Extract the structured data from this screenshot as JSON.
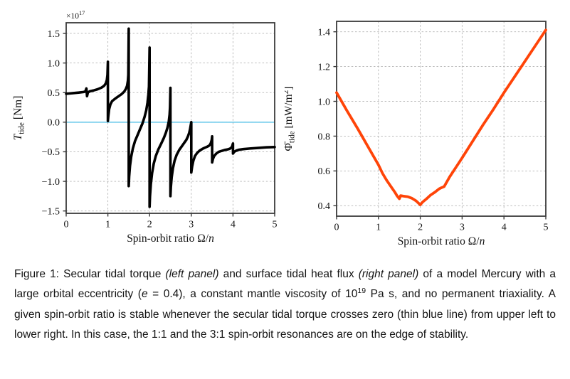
{
  "chart_data": [
    {
      "id": "secular-tidal-torque",
      "type": "line",
      "xlabel_parts": [
        {
          "t": "Spin-orbit ratio "
        },
        {
          "t": "Ω"
        },
        {
          "t": "/"
        },
        {
          "t": "n",
          "italic": true
        }
      ],
      "ylabel_parts": [
        {
          "t": "T",
          "italic": true
        },
        {
          "t": "tide",
          "pos": "sub"
        },
        {
          "t": " [Nm]"
        }
      ],
      "offset_label_parts": [
        {
          "t": "×10"
        },
        {
          "t": "17",
          "pos": "sup"
        }
      ],
      "xlim": [
        0,
        5
      ],
      "ylim": [
        -1.54,
        1.68
      ],
      "xticks": [
        0,
        1,
        2,
        3,
        4,
        5
      ],
      "xtick_labels": [
        "0",
        "1",
        "2",
        "3",
        "4",
        "5"
      ],
      "yticks": [
        -1.5,
        -1.0,
        -0.5,
        0.0,
        0.5,
        1.0,
        1.5
      ],
      "ytick_labels": [
        "−1.5",
        "−1.0",
        "−0.5",
        "0.0",
        "0.5",
        "1.0",
        "1.5"
      ],
      "grid": true,
      "legend": "none",
      "line_color": "#000000",
      "line_width": 3.6,
      "zero_line": {
        "y": 0,
        "color": "#64c8ea",
        "width": 1.5
      },
      "points": [
        [
          0,
          0.48
        ],
        [
          0.15,
          0.49
        ],
        [
          0.3,
          0.5
        ],
        [
          0.42,
          0.51
        ],
        [
          0.46,
          0.52
        ],
        [
          0.485,
          0.57
        ],
        [
          0.5,
          0.44
        ],
        [
          0.52,
          0.5
        ],
        [
          0.56,
          0.52
        ],
        [
          0.65,
          0.535
        ],
        [
          0.75,
          0.555
        ],
        [
          0.85,
          0.585
        ],
        [
          0.91,
          0.615
        ],
        [
          0.95,
          0.655
        ],
        [
          0.975,
          0.71
        ],
        [
          0.99,
          0.8
        ],
        [
          1,
          1.02
        ],
        [
          1,
          0.02
        ],
        [
          1.01,
          0.1
        ],
        [
          1.03,
          0.22
        ],
        [
          1.06,
          0.3
        ],
        [
          1.1,
          0.355
        ],
        [
          1.18,
          0.4
        ],
        [
          1.26,
          0.44
        ],
        [
          1.33,
          0.475
        ],
        [
          1.39,
          0.515
        ],
        [
          1.43,
          0.56
        ],
        [
          1.46,
          0.615
        ],
        [
          1.48,
          0.7
        ],
        [
          1.49,
          0.8
        ],
        [
          1.5,
          1.58
        ],
        [
          1.5,
          -1.08
        ],
        [
          1.51,
          -0.92
        ],
        [
          1.53,
          -0.74
        ],
        [
          1.56,
          -0.58
        ],
        [
          1.6,
          -0.44
        ],
        [
          1.65,
          -0.32
        ],
        [
          1.71,
          -0.22
        ],
        [
          1.77,
          -0.12
        ],
        [
          1.83,
          -0.02
        ],
        [
          1.88,
          0.09
        ],
        [
          1.92,
          0.2
        ],
        [
          1.95,
          0.33
        ],
        [
          1.97,
          0.46
        ],
        [
          1.985,
          0.6
        ],
        [
          2,
          1.26
        ],
        [
          2,
          -1.43
        ],
        [
          2.01,
          -1.25
        ],
        [
          2.03,
          -1.05
        ],
        [
          2.06,
          -0.86
        ],
        [
          2.1,
          -0.7
        ],
        [
          2.15,
          -0.57
        ],
        [
          2.21,
          -0.46
        ],
        [
          2.28,
          -0.36
        ],
        [
          2.34,
          -0.27
        ],
        [
          2.39,
          -0.18
        ],
        [
          2.43,
          -0.09
        ],
        [
          2.46,
          0.01
        ],
        [
          2.48,
          0.13
        ],
        [
          2.49,
          0.25
        ],
        [
          2.5,
          0.58
        ],
        [
          2.5,
          -1.25
        ],
        [
          2.51,
          -1.1
        ],
        [
          2.53,
          -0.93
        ],
        [
          2.56,
          -0.78
        ],
        [
          2.6,
          -0.65
        ],
        [
          2.65,
          -0.55
        ],
        [
          2.71,
          -0.47
        ],
        [
          2.77,
          -0.41
        ],
        [
          2.83,
          -0.35
        ],
        [
          2.88,
          -0.3
        ],
        [
          2.92,
          -0.24
        ],
        [
          2.95,
          -0.18
        ],
        [
          2.97,
          -0.12
        ],
        [
          2.985,
          -0.06
        ],
        [
          3,
          0
        ],
        [
          3,
          -0.85
        ],
        [
          3.02,
          -0.75
        ],
        [
          3.05,
          -0.65
        ],
        [
          3.09,
          -0.57
        ],
        [
          3.14,
          -0.52
        ],
        [
          3.2,
          -0.48
        ],
        [
          3.27,
          -0.45
        ],
        [
          3.33,
          -0.43
        ],
        [
          3.38,
          -0.415
        ],
        [
          3.42,
          -0.4
        ],
        [
          3.45,
          -0.38
        ],
        [
          3.47,
          -0.35
        ],
        [
          3.49,
          -0.3
        ],
        [
          3.5,
          -0.24
        ],
        [
          3.5,
          -0.68
        ],
        [
          3.52,
          -0.62
        ],
        [
          3.55,
          -0.57
        ],
        [
          3.6,
          -0.53
        ],
        [
          3.66,
          -0.5
        ],
        [
          3.73,
          -0.485
        ],
        [
          3.8,
          -0.47
        ],
        [
          3.87,
          -0.46
        ],
        [
          3.92,
          -0.45
        ],
        [
          3.96,
          -0.43
        ],
        [
          3.98,
          -0.41
        ],
        [
          4,
          -0.36
        ],
        [
          4,
          -0.53
        ],
        [
          4.03,
          -0.5
        ],
        [
          4.08,
          -0.48
        ],
        [
          4.15,
          -0.465
        ],
        [
          4.25,
          -0.455
        ],
        [
          4.4,
          -0.445
        ],
        [
          4.6,
          -0.435
        ],
        [
          4.8,
          -0.425
        ],
        [
          5,
          -0.42
        ]
      ]
    },
    {
      "id": "surface-tidal-heat-flux",
      "type": "line",
      "xlabel_parts": [
        {
          "t": "Spin-orbit ratio "
        },
        {
          "t": "Ω"
        },
        {
          "t": "/"
        },
        {
          "t": "n",
          "italic": true
        }
      ],
      "ylabel_parts": [
        {
          "t": "Φ̄"
        },
        {
          "t": "tide",
          "pos": "sub"
        },
        {
          "t": " [mW/m"
        },
        {
          "t": "2",
          "pos": "sup"
        },
        {
          "t": "]"
        }
      ],
      "offset_label_parts": [],
      "xlim": [
        0,
        5
      ],
      "ylim": [
        0.34,
        1.46
      ],
      "xticks": [
        0,
        1,
        2,
        3,
        4,
        5
      ],
      "xtick_labels": [
        "0",
        "1",
        "2",
        "3",
        "4",
        "5"
      ],
      "yticks": [
        0.4,
        0.6,
        0.8,
        1.0,
        1.2,
        1.4
      ],
      "ytick_labels": [
        "0.4",
        "0.6",
        "0.8",
        "1.0",
        "1.2",
        "1.4"
      ],
      "grid": true,
      "legend": "none",
      "line_color": "#ff4408",
      "line_width": 3.8,
      "zero_line": null,
      "points": [
        [
          0,
          1.05
        ],
        [
          0.25,
          0.945
        ],
        [
          0.5,
          0.845
        ],
        [
          0.75,
          0.74
        ],
        [
          1,
          0.635
        ],
        [
          1.1,
          0.585
        ],
        [
          1.2,
          0.545
        ],
        [
          1.3,
          0.51
        ],
        [
          1.4,
          0.475
        ],
        [
          1.45,
          0.455
        ],
        [
          1.5,
          0.44
        ],
        [
          1.53,
          0.458
        ],
        [
          1.6,
          0.455
        ],
        [
          1.7,
          0.452
        ],
        [
          1.8,
          0.443
        ],
        [
          1.9,
          0.428
        ],
        [
          1.97,
          0.412
        ],
        [
          2,
          0.405
        ],
        [
          2.05,
          0.42
        ],
        [
          2.15,
          0.44
        ],
        [
          2.25,
          0.462
        ],
        [
          2.35,
          0.478
        ],
        [
          2.45,
          0.497
        ],
        [
          2.5,
          0.503
        ],
        [
          2.57,
          0.51
        ],
        [
          2.7,
          0.565
        ],
        [
          2.85,
          0.62
        ],
        [
          3,
          0.675
        ],
        [
          3.25,
          0.77
        ],
        [
          3.5,
          0.865
        ],
        [
          3.75,
          0.955
        ],
        [
          4,
          1.05
        ],
        [
          4.25,
          1.14
        ],
        [
          4.5,
          1.23
        ],
        [
          4.75,
          1.32
        ],
        [
          5,
          1.41
        ]
      ]
    }
  ],
  "style_colors": {
    "grid": "#b3b3b3",
    "spine": "#3a3a3a",
    "tick_text": "#111111",
    "background": "#ffffff"
  },
  "caption": {
    "segments": [
      {
        "t": "Figure 1: Secular tidal torque "
      },
      {
        "t": "(left panel)",
        "italic": true
      },
      {
        "t": " and surface tidal heat flux "
      },
      {
        "t": "(right panel)",
        "italic": true
      },
      {
        "t": " of a model Mercury with a large orbital eccentricity ("
      },
      {
        "t": "e",
        "italic": true
      },
      {
        "t": " = 0.4), a constant mantle viscosity of 10"
      },
      {
        "t": "19",
        "pos": "sup"
      },
      {
        "t": " Pa s, and no permanent triaxiality. A given spin-orbit ratio is stable whenever the secular tidal torque crosses zero (thin blue line) from upper left to lower right. In this case, the 1:1 and the 3:1 spin-orbit resonances are on the edge of stability."
      }
    ]
  }
}
